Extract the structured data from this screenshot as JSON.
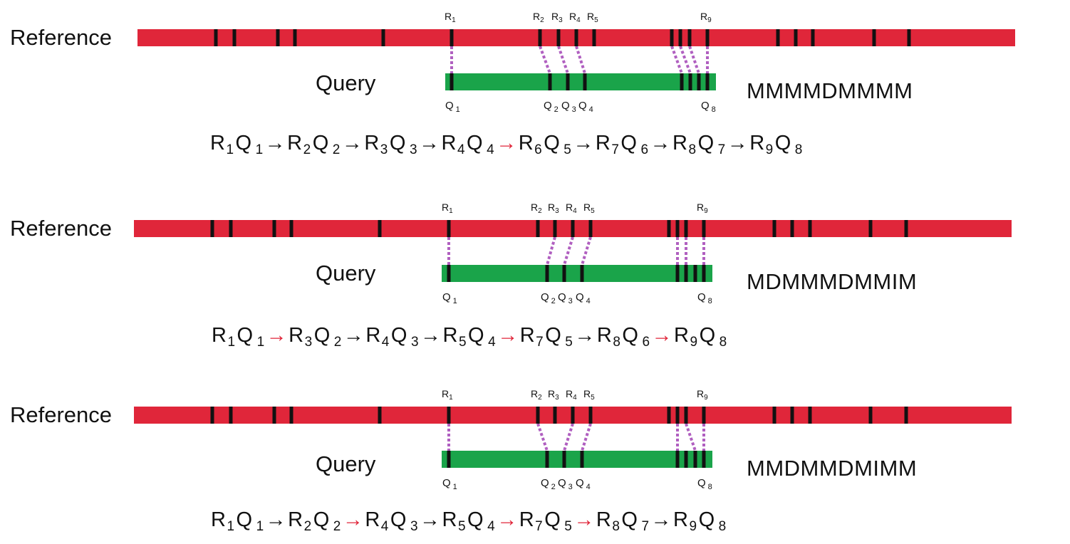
{
  "colors": {
    "reference_bar": "#e0263a",
    "query_bar": "#1aa44a",
    "marker": "#111111",
    "match_link": "#b05fc0",
    "arrow_default": "#111111",
    "arrow_highlight": "#e0263a"
  },
  "panels": [
    {
      "reference_label": "Reference",
      "query_label": "Query",
      "ops": "MMMMDMMMM",
      "ref_marks": [
        {
          "base": "R",
          "sub": "1"
        },
        {
          "base": "R",
          "sub": "2"
        },
        {
          "base": "R",
          "sub": "3"
        },
        {
          "base": "R",
          "sub": "4"
        },
        {
          "base": "R",
          "sub": "5"
        },
        {
          "base": "R",
          "sub": "9"
        }
      ],
      "query_marks": [
        {
          "base": "Q",
          "sub": "1"
        },
        {
          "base": "Q",
          "sub": "2"
        },
        {
          "base": "Q",
          "sub": "3"
        },
        {
          "base": "Q",
          "sub": "4"
        },
        {
          "base": "Q",
          "sub": "8"
        }
      ],
      "chain": [
        {
          "r": "1",
          "q": "1"
        },
        {
          "arrow": "black"
        },
        {
          "r": "2",
          "q": "2"
        },
        {
          "arrow": "black"
        },
        {
          "r": "3",
          "q": "3"
        },
        {
          "arrow": "black"
        },
        {
          "r": "4",
          "q": "4"
        },
        {
          "arrow": "red"
        },
        {
          "r": "6",
          "q": "5"
        },
        {
          "arrow": "black"
        },
        {
          "r": "7",
          "q": "6"
        },
        {
          "arrow": "black"
        },
        {
          "r": "8",
          "q": "7"
        },
        {
          "arrow": "black"
        },
        {
          "r": "9",
          "q": "8"
        }
      ]
    },
    {
      "reference_label": "Reference",
      "query_label": "Query",
      "ops": "MDMMMDMMIM",
      "ref_marks": [
        {
          "base": "R",
          "sub": "1"
        },
        {
          "base": "R",
          "sub": "2"
        },
        {
          "base": "R",
          "sub": "3"
        },
        {
          "base": "R",
          "sub": "4"
        },
        {
          "base": "R",
          "sub": "5"
        },
        {
          "base": "R",
          "sub": "9"
        }
      ],
      "query_marks": [
        {
          "base": "Q",
          "sub": "1"
        },
        {
          "base": "Q",
          "sub": "2"
        },
        {
          "base": "Q",
          "sub": "3"
        },
        {
          "base": "Q",
          "sub": "4"
        },
        {
          "base": "Q",
          "sub": "8"
        }
      ],
      "chain": [
        {
          "r": "1",
          "q": "1"
        },
        {
          "arrow": "red"
        },
        {
          "r": "3",
          "q": "2"
        },
        {
          "arrow": "black"
        },
        {
          "r": "4",
          "q": "3"
        },
        {
          "arrow": "black"
        },
        {
          "r": "5",
          "q": "4"
        },
        {
          "arrow": "red"
        },
        {
          "r": "7",
          "q": "5"
        },
        {
          "arrow": "black"
        },
        {
          "r": "8",
          "q": "6"
        },
        {
          "arrow": "red"
        },
        {
          "r": "9",
          "q": "8"
        }
      ]
    },
    {
      "reference_label": "Reference",
      "query_label": "Query",
      "ops": "MMDMMDMIMM",
      "ref_marks": [
        {
          "base": "R",
          "sub": "1"
        },
        {
          "base": "R",
          "sub": "2"
        },
        {
          "base": "R",
          "sub": "3"
        },
        {
          "base": "R",
          "sub": "4"
        },
        {
          "base": "R",
          "sub": "5"
        },
        {
          "base": "R",
          "sub": "9"
        }
      ],
      "query_marks": [
        {
          "base": "Q",
          "sub": "1"
        },
        {
          "base": "Q",
          "sub": "2"
        },
        {
          "base": "Q",
          "sub": "3"
        },
        {
          "base": "Q",
          "sub": "4"
        },
        {
          "base": "Q",
          "sub": "8"
        }
      ],
      "chain": [
        {
          "r": "1",
          "q": "1"
        },
        {
          "arrow": "black"
        },
        {
          "r": "2",
          "q": "2"
        },
        {
          "arrow": "red"
        },
        {
          "r": "4",
          "q": "3"
        },
        {
          "arrow": "black"
        },
        {
          "r": "5",
          "q": "4"
        },
        {
          "arrow": "red"
        },
        {
          "r": "7",
          "q": "5"
        },
        {
          "arrow": "red"
        },
        {
          "r": "8",
          "q": "7"
        },
        {
          "arrow": "black"
        },
        {
          "r": "9",
          "q": "8"
        }
      ]
    }
  ]
}
